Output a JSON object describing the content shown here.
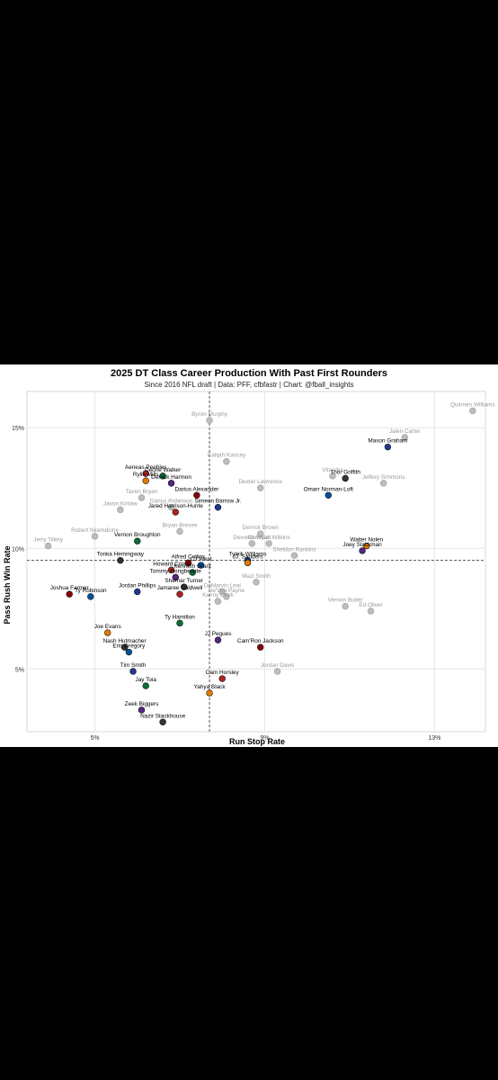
{
  "chart_data": {
    "type": "scatter",
    "title": "2025 DT Class Career Production With Past First Rounders",
    "subtitle": "Since 2016 NFL draft | Data: PFF, cfbfastr | Chart: @fball_insights",
    "xlabel": "Run Stop Rate",
    "ylabel": "Pass Rush Win Rate",
    "xlim": [
      3.4,
      14.2
    ],
    "ylim": [
      2.4,
      16.5
    ],
    "x_ticks": [
      "5%",
      "9%",
      "13%"
    ],
    "y_ticks": [
      "5%",
      "10%",
      "15%"
    ],
    "reference_lines": {
      "x": 7.7,
      "y": 9.5
    },
    "grid": true,
    "series": [
      {
        "name": "2025 DT Class",
        "color": "#000000",
        "points": [
          {
            "label": "Mason Graham",
            "x": 11.9,
            "y": 14.2
          },
          {
            "label": "Aeneas Peebles",
            "x": 6.2,
            "y": 13.1
          },
          {
            "label": "Deone Walker",
            "x": 6.6,
            "y": 13.0
          },
          {
            "label": "Rylie Mills",
            "x": 6.2,
            "y": 12.8
          },
          {
            "label": "Derrick Harmon",
            "x": 6.8,
            "y": 12.7
          },
          {
            "label": "Thor Griffith",
            "x": 10.9,
            "y": 12.9
          },
          {
            "label": "Darius Alexander",
            "x": 7.4,
            "y": 12.2
          },
          {
            "label": "Omarr Norman-Loft",
            "x": 10.5,
            "y": 12.2
          },
          {
            "label": "Simeon Barrow Jr.",
            "x": 7.9,
            "y": 11.7
          },
          {
            "label": "Jared Harrison-Hunte",
            "x": 6.9,
            "y": 11.5
          },
          {
            "label": "Vernon Broughton",
            "x": 6.0,
            "y": 10.3
          },
          {
            "label": "Walter Nolen",
            "x": 11.4,
            "y": 10.1
          },
          {
            "label": "Joey Slackman",
            "x": 11.3,
            "y": 9.9
          },
          {
            "label": "Tonka Hemingway",
            "x": 5.6,
            "y": 9.5
          },
          {
            "label": "Alfred Collins",
            "x": 7.2,
            "y": 9.4
          },
          {
            "label": "CJ West",
            "x": 7.5,
            "y": 9.3
          },
          {
            "label": "Tyleik Williams",
            "x": 8.6,
            "y": 9.5
          },
          {
            "label": "Howard Cross",
            "x": 6.8,
            "y": 9.1
          },
          {
            "label": "Kenneth Grant",
            "x": 7.3,
            "y": 9.0
          },
          {
            "label": "JJ. Sanders",
            "x": 8.6,
            "y": 9.4
          },
          {
            "label": "Tommy Akingbesote",
            "x": 6.9,
            "y": 8.8
          },
          {
            "label": "Shemar Turner",
            "x": 7.1,
            "y": 8.4
          },
          {
            "label": "Joshua Farmer",
            "x": 4.4,
            "y": 8.1
          },
          {
            "label": "Ty Robinson",
            "x": 4.9,
            "y": 8.0
          },
          {
            "label": "Jordan Phillips",
            "x": 6.0,
            "y": 8.2
          },
          {
            "label": "Jamaree Caldwell",
            "x": 7.0,
            "y": 8.1
          },
          {
            "label": "Ty Hamilton",
            "x": 7.0,
            "y": 6.9
          },
          {
            "label": "Joe Evans",
            "x": 5.3,
            "y": 6.5
          },
          {
            "label": "JJ Pegues",
            "x": 7.9,
            "y": 6.2
          },
          {
            "label": "Nash Hutmacher",
            "x": 5.7,
            "y": 5.9
          },
          {
            "label": "Cam'Ron Jackson",
            "x": 8.9,
            "y": 5.9
          },
          {
            "label": "Eric Gregory",
            "x": 5.8,
            "y": 5.7
          },
          {
            "label": "Tim Smith",
            "x": 5.9,
            "y": 4.9
          },
          {
            "label": "Cam Horsley",
            "x": 8.0,
            "y": 4.6
          },
          {
            "label": "Jay Toia",
            "x": 6.2,
            "y": 4.3
          },
          {
            "label": "Yahya Black",
            "x": 7.7,
            "y": 4.0
          },
          {
            "label": "Zeek Biggers",
            "x": 6.1,
            "y": 3.3
          },
          {
            "label": "Nazir Stackhouse",
            "x": 6.6,
            "y": 2.8
          }
        ]
      },
      {
        "name": "Past First Rounders",
        "color": "#999999",
        "points": [
          {
            "label": "Quinnen Williams",
            "x": 13.9,
            "y": 15.7
          },
          {
            "label": "Jalen Carter",
            "x": 12.3,
            "y": 14.6
          },
          {
            "label": "Byron Murphy",
            "x": 7.7,
            "y": 15.3
          },
          {
            "label": "Calijah Kancey",
            "x": 8.1,
            "y": 13.6
          },
          {
            "label": "Vita Vea",
            "x": 10.6,
            "y": 13.0
          },
          {
            "label": "Dexter Lawrence",
            "x": 8.9,
            "y": 12.5
          },
          {
            "label": "Jeffery Simmons",
            "x": 11.8,
            "y": 12.7
          },
          {
            "label": "Taven Bryan",
            "x": 6.1,
            "y": 12.1
          },
          {
            "label": "Darius Robinson",
            "x": 6.8,
            "y": 11.7
          },
          {
            "label": "Javon Kinlaw",
            "x": 5.6,
            "y": 11.6
          },
          {
            "label": "Robert Nkemdiche",
            "x": 5.0,
            "y": 10.5
          },
          {
            "label": "Bryan Bresee",
            "x": 7.0,
            "y": 10.7
          },
          {
            "label": "Derrick Brown",
            "x": 8.9,
            "y": 10.6
          },
          {
            "label": "Jerry Tillery",
            "x": 3.9,
            "y": 10.1
          },
          {
            "label": "Devonte Wyatt",
            "x": 8.7,
            "y": 10.2
          },
          {
            "label": "Christian Wilkins",
            "x": 9.1,
            "y": 10.2
          },
          {
            "label": "Sheldon Rankins",
            "x": 9.7,
            "y": 9.7
          },
          {
            "label": "Mazi Smith",
            "x": 8.8,
            "y": 8.6
          },
          {
            "label": "DeMarvin Leal",
            "x": 8.0,
            "y": 8.2
          },
          {
            "label": "De'Von Payne",
            "x": 8.1,
            "y": 8.0
          },
          {
            "label": "Kenny Clark",
            "x": 7.9,
            "y": 7.8
          },
          {
            "label": "Vernon Butler",
            "x": 10.9,
            "y": 7.6
          },
          {
            "label": "Ed Oliver",
            "x": 11.5,
            "y": 7.4
          },
          {
            "label": "Jordan Davis",
            "x": 9.3,
            "y": 4.9
          }
        ]
      }
    ]
  }
}
